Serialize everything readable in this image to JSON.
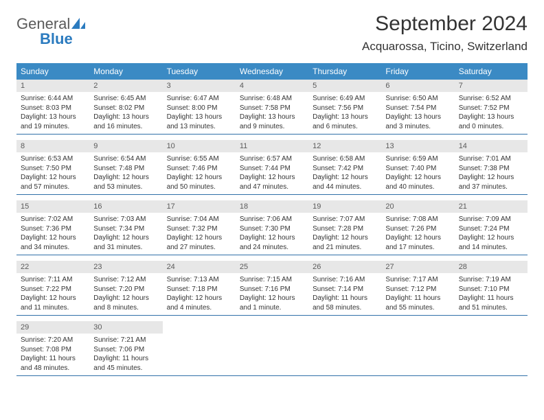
{
  "brand": {
    "word1": "General",
    "word2": "Blue"
  },
  "title": "September 2024",
  "location": "Acquarossa, Ticino, Switzerland",
  "colors": {
    "header_bg": "#3b8ac4",
    "header_text": "#ffffff",
    "daynum_bg": "#e7e7e7",
    "rule": "#2f6fa8",
    "brand_gray": "#5a5a5a",
    "brand_blue": "#2b7bbf"
  },
  "day_names": [
    "Sunday",
    "Monday",
    "Tuesday",
    "Wednesday",
    "Thursday",
    "Friday",
    "Saturday"
  ],
  "weeks": [
    [
      {
        "n": "1",
        "sunrise": "Sunrise: 6:44 AM",
        "sunset": "Sunset: 8:03 PM",
        "daylight": "Daylight: 13 hours and 19 minutes."
      },
      {
        "n": "2",
        "sunrise": "Sunrise: 6:45 AM",
        "sunset": "Sunset: 8:02 PM",
        "daylight": "Daylight: 13 hours and 16 minutes."
      },
      {
        "n": "3",
        "sunrise": "Sunrise: 6:47 AM",
        "sunset": "Sunset: 8:00 PM",
        "daylight": "Daylight: 13 hours and 13 minutes."
      },
      {
        "n": "4",
        "sunrise": "Sunrise: 6:48 AM",
        "sunset": "Sunset: 7:58 PM",
        "daylight": "Daylight: 13 hours and 9 minutes."
      },
      {
        "n": "5",
        "sunrise": "Sunrise: 6:49 AM",
        "sunset": "Sunset: 7:56 PM",
        "daylight": "Daylight: 13 hours and 6 minutes."
      },
      {
        "n": "6",
        "sunrise": "Sunrise: 6:50 AM",
        "sunset": "Sunset: 7:54 PM",
        "daylight": "Daylight: 13 hours and 3 minutes."
      },
      {
        "n": "7",
        "sunrise": "Sunrise: 6:52 AM",
        "sunset": "Sunset: 7:52 PM",
        "daylight": "Daylight: 13 hours and 0 minutes."
      }
    ],
    [
      {
        "n": "8",
        "sunrise": "Sunrise: 6:53 AM",
        "sunset": "Sunset: 7:50 PM",
        "daylight": "Daylight: 12 hours and 57 minutes."
      },
      {
        "n": "9",
        "sunrise": "Sunrise: 6:54 AM",
        "sunset": "Sunset: 7:48 PM",
        "daylight": "Daylight: 12 hours and 53 minutes."
      },
      {
        "n": "10",
        "sunrise": "Sunrise: 6:55 AM",
        "sunset": "Sunset: 7:46 PM",
        "daylight": "Daylight: 12 hours and 50 minutes."
      },
      {
        "n": "11",
        "sunrise": "Sunrise: 6:57 AM",
        "sunset": "Sunset: 7:44 PM",
        "daylight": "Daylight: 12 hours and 47 minutes."
      },
      {
        "n": "12",
        "sunrise": "Sunrise: 6:58 AM",
        "sunset": "Sunset: 7:42 PM",
        "daylight": "Daylight: 12 hours and 44 minutes."
      },
      {
        "n": "13",
        "sunrise": "Sunrise: 6:59 AM",
        "sunset": "Sunset: 7:40 PM",
        "daylight": "Daylight: 12 hours and 40 minutes."
      },
      {
        "n": "14",
        "sunrise": "Sunrise: 7:01 AM",
        "sunset": "Sunset: 7:38 PM",
        "daylight": "Daylight: 12 hours and 37 minutes."
      }
    ],
    [
      {
        "n": "15",
        "sunrise": "Sunrise: 7:02 AM",
        "sunset": "Sunset: 7:36 PM",
        "daylight": "Daylight: 12 hours and 34 minutes."
      },
      {
        "n": "16",
        "sunrise": "Sunrise: 7:03 AM",
        "sunset": "Sunset: 7:34 PM",
        "daylight": "Daylight: 12 hours and 31 minutes."
      },
      {
        "n": "17",
        "sunrise": "Sunrise: 7:04 AM",
        "sunset": "Sunset: 7:32 PM",
        "daylight": "Daylight: 12 hours and 27 minutes."
      },
      {
        "n": "18",
        "sunrise": "Sunrise: 7:06 AM",
        "sunset": "Sunset: 7:30 PM",
        "daylight": "Daylight: 12 hours and 24 minutes."
      },
      {
        "n": "19",
        "sunrise": "Sunrise: 7:07 AM",
        "sunset": "Sunset: 7:28 PM",
        "daylight": "Daylight: 12 hours and 21 minutes."
      },
      {
        "n": "20",
        "sunrise": "Sunrise: 7:08 AM",
        "sunset": "Sunset: 7:26 PM",
        "daylight": "Daylight: 12 hours and 17 minutes."
      },
      {
        "n": "21",
        "sunrise": "Sunrise: 7:09 AM",
        "sunset": "Sunset: 7:24 PM",
        "daylight": "Daylight: 12 hours and 14 minutes."
      }
    ],
    [
      {
        "n": "22",
        "sunrise": "Sunrise: 7:11 AM",
        "sunset": "Sunset: 7:22 PM",
        "daylight": "Daylight: 12 hours and 11 minutes."
      },
      {
        "n": "23",
        "sunrise": "Sunrise: 7:12 AM",
        "sunset": "Sunset: 7:20 PM",
        "daylight": "Daylight: 12 hours and 8 minutes."
      },
      {
        "n": "24",
        "sunrise": "Sunrise: 7:13 AM",
        "sunset": "Sunset: 7:18 PM",
        "daylight": "Daylight: 12 hours and 4 minutes."
      },
      {
        "n": "25",
        "sunrise": "Sunrise: 7:15 AM",
        "sunset": "Sunset: 7:16 PM",
        "daylight": "Daylight: 12 hours and 1 minute."
      },
      {
        "n": "26",
        "sunrise": "Sunrise: 7:16 AM",
        "sunset": "Sunset: 7:14 PM",
        "daylight": "Daylight: 11 hours and 58 minutes."
      },
      {
        "n": "27",
        "sunrise": "Sunrise: 7:17 AM",
        "sunset": "Sunset: 7:12 PM",
        "daylight": "Daylight: 11 hours and 55 minutes."
      },
      {
        "n": "28",
        "sunrise": "Sunrise: 7:19 AM",
        "sunset": "Sunset: 7:10 PM",
        "daylight": "Daylight: 11 hours and 51 minutes."
      }
    ],
    [
      {
        "n": "29",
        "sunrise": "Sunrise: 7:20 AM",
        "sunset": "Sunset: 7:08 PM",
        "daylight": "Daylight: 11 hours and 48 minutes."
      },
      {
        "n": "30",
        "sunrise": "Sunrise: 7:21 AM",
        "sunset": "Sunset: 7:06 PM",
        "daylight": "Daylight: 11 hours and 45 minutes."
      },
      {
        "empty": true
      },
      {
        "empty": true
      },
      {
        "empty": true
      },
      {
        "empty": true
      },
      {
        "empty": true
      }
    ]
  ]
}
